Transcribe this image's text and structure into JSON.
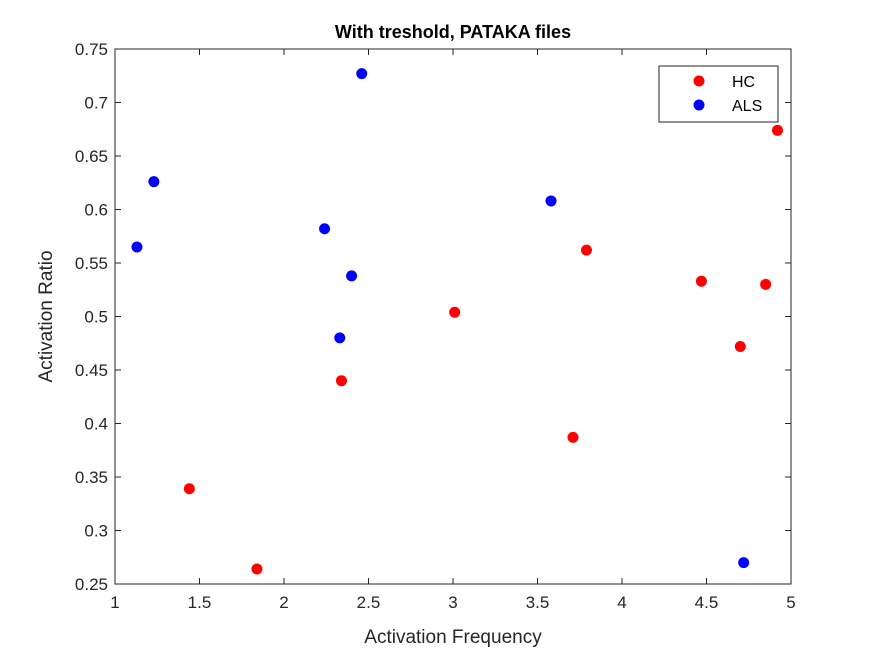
{
  "chart_data": {
    "type": "scatter",
    "title": "With treshold, PATAKA files",
    "xlabel": "Activation Frequency",
    "ylabel": "Activation Ratio",
    "xlim": [
      1,
      5
    ],
    "ylim": [
      0.25,
      0.75
    ],
    "xticks": [
      "1",
      "1.5",
      "2",
      "2.5",
      "3",
      "3.5",
      "4",
      "4.5",
      "5"
    ],
    "yticks": [
      "0.25",
      "0.3",
      "0.35",
      "0.4",
      "0.45",
      "0.5",
      "0.55",
      "0.6",
      "0.65",
      "0.7",
      "0.75"
    ],
    "grid": false,
    "legend_position": "top-right",
    "series": [
      {
        "name": "HC",
        "color": "#ff0000",
        "points": [
          {
            "x": 1.44,
            "y": 0.339
          },
          {
            "x": 1.84,
            "y": 0.264
          },
          {
            "x": 2.34,
            "y": 0.44
          },
          {
            "x": 3.01,
            "y": 0.504
          },
          {
            "x": 3.71,
            "y": 0.387
          },
          {
            "x": 3.79,
            "y": 0.562
          },
          {
            "x": 4.47,
            "y": 0.533
          },
          {
            "x": 4.7,
            "y": 0.472
          },
          {
            "x": 4.85,
            "y": 0.53
          },
          {
            "x": 4.92,
            "y": 0.674
          }
        ]
      },
      {
        "name": "ALS",
        "color": "#0000ff",
        "points": [
          {
            "x": 1.13,
            "y": 0.565
          },
          {
            "x": 1.23,
            "y": 0.626
          },
          {
            "x": 2.24,
            "y": 0.582
          },
          {
            "x": 2.33,
            "y": 0.48
          },
          {
            "x": 2.4,
            "y": 0.538
          },
          {
            "x": 2.46,
            "y": 0.727
          },
          {
            "x": 3.58,
            "y": 0.608
          },
          {
            "x": 4.72,
            "y": 0.27
          }
        ]
      }
    ]
  }
}
